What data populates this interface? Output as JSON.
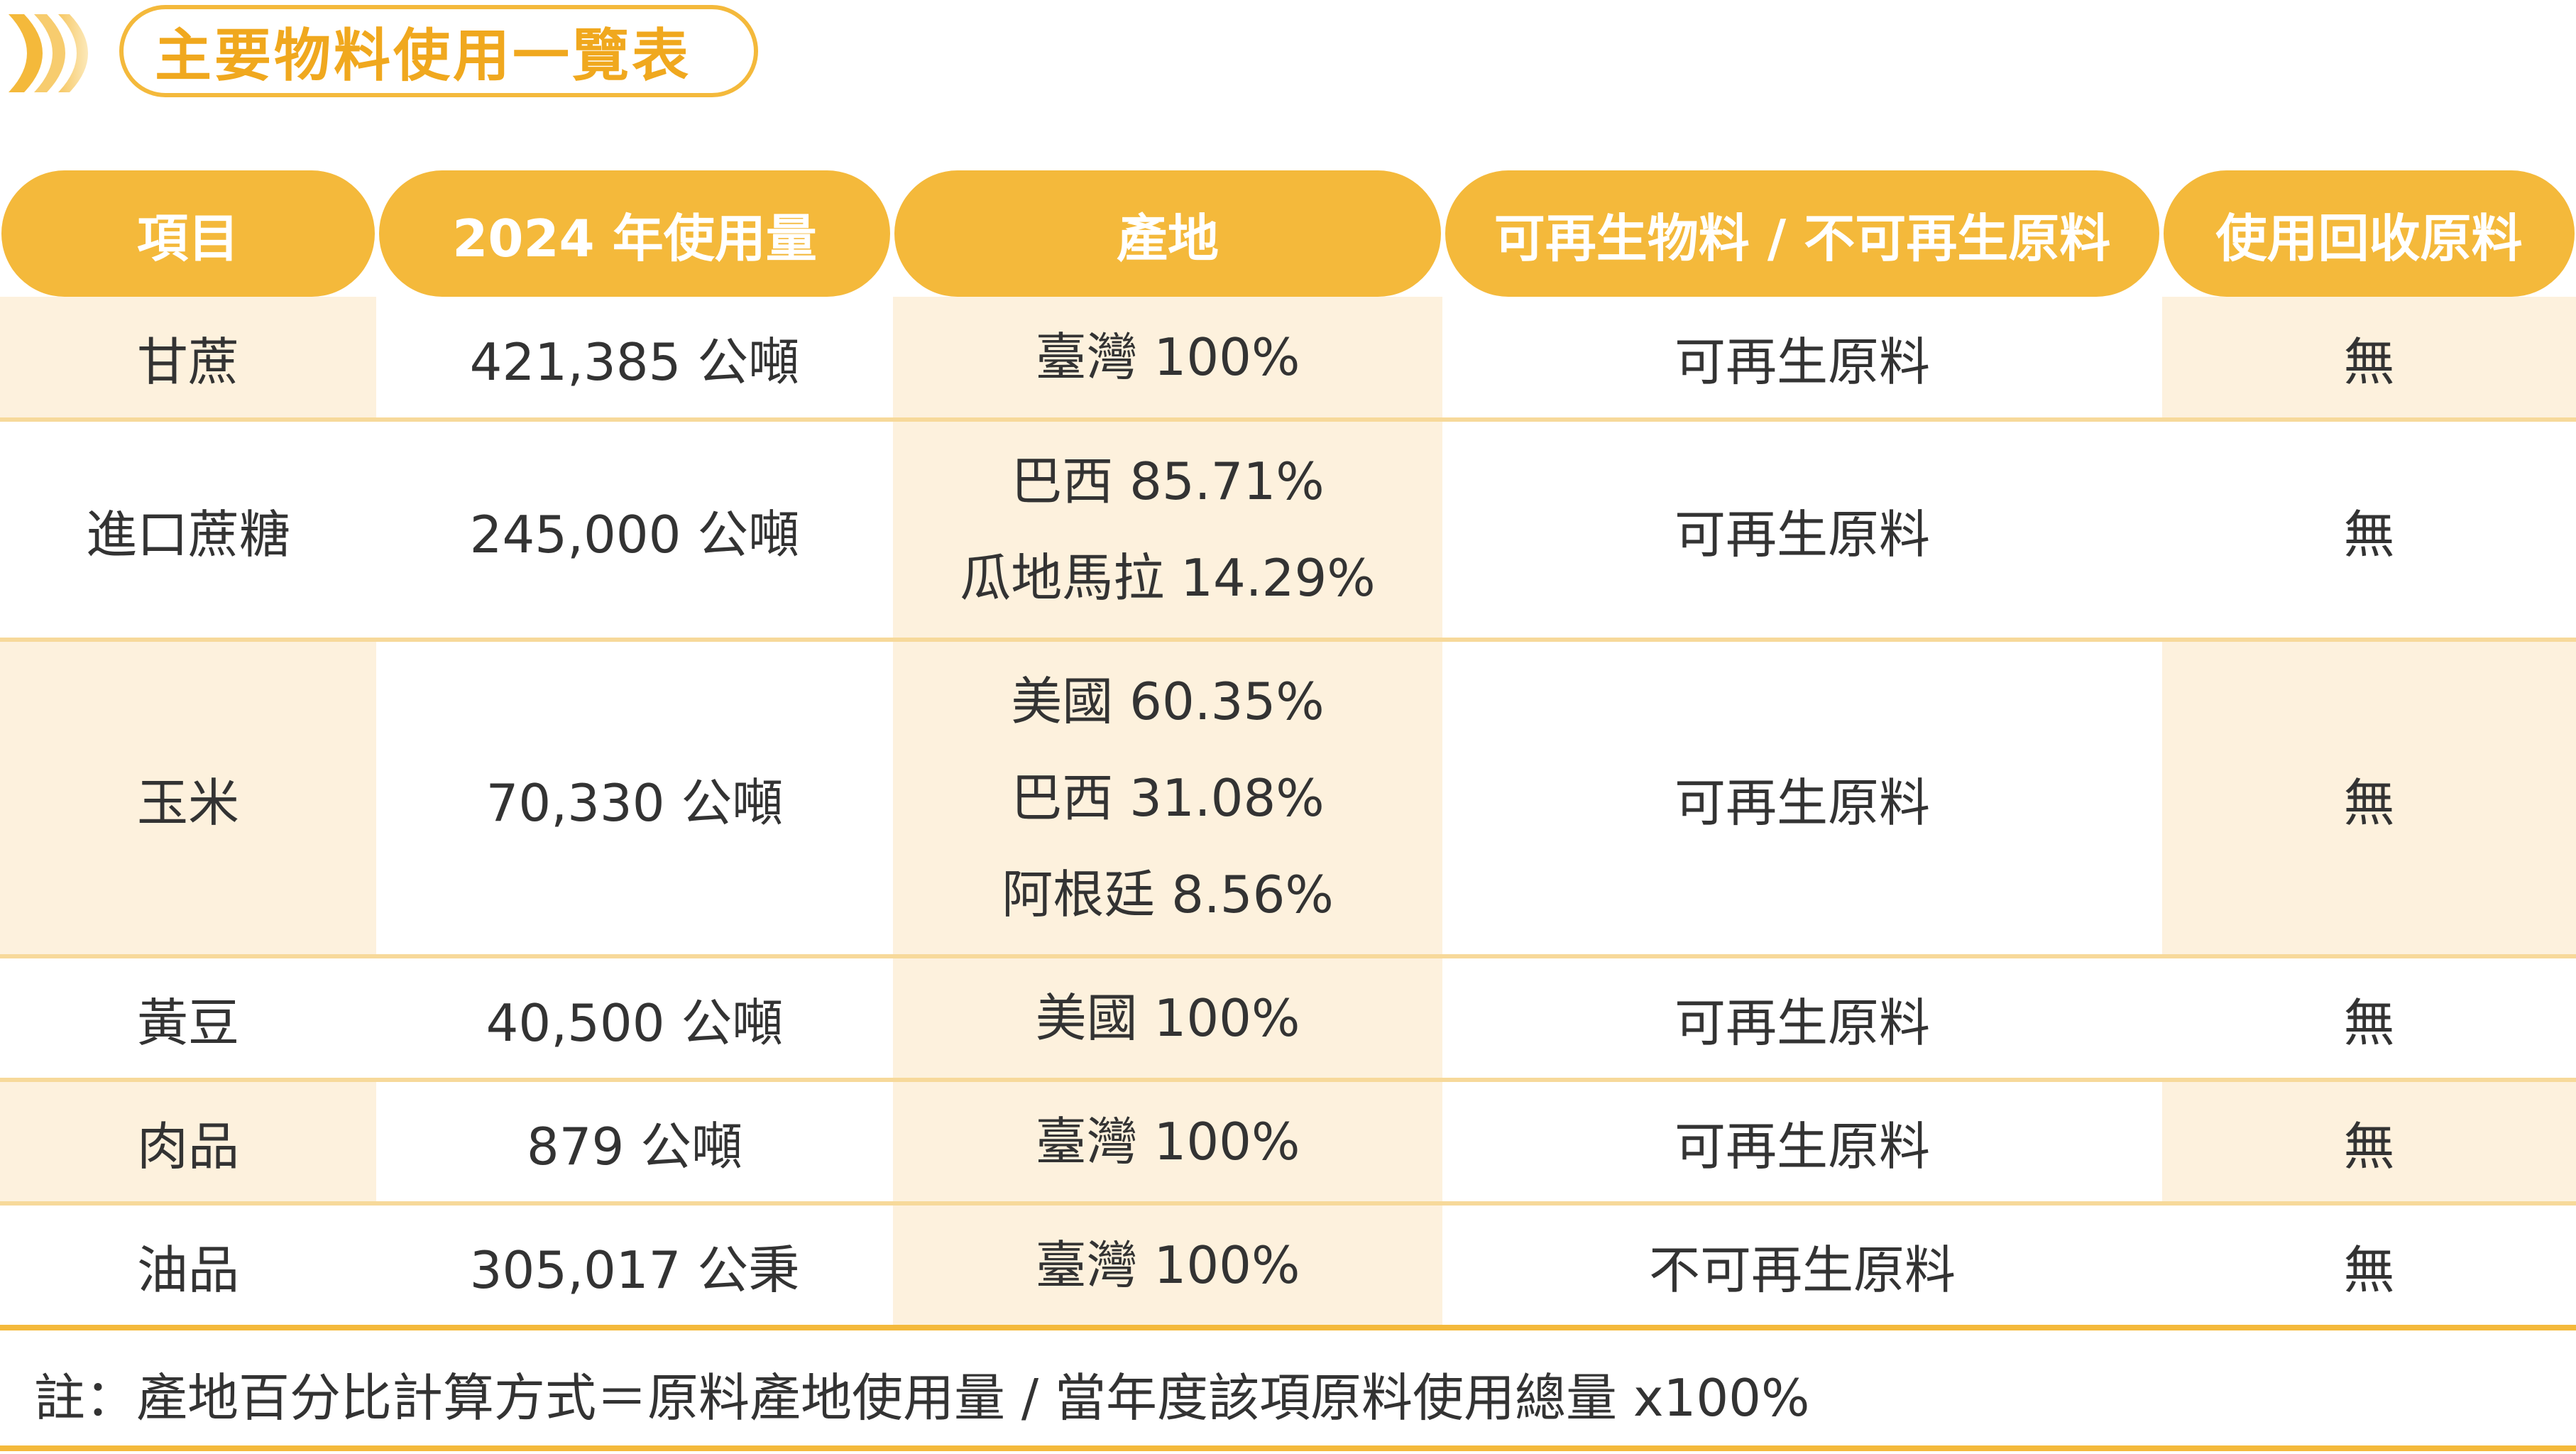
{
  "title": "主要物料使用一覽表",
  "colors": {
    "accent": "#f4b93b",
    "title_text": "#f0a81e",
    "shade": "#fdf1dd",
    "divider": "#f7d99a"
  },
  "icons": {
    "title": "chevron-stack-icon"
  },
  "table": {
    "headers": [
      "項目",
      "2024 年使用量",
      "產地",
      "可再生物料 / 不可再生原料",
      "使用回收原料"
    ],
    "rows": [
      {
        "item": "甘蔗",
        "usage": "421,385 公噸",
        "origin": [
          "臺灣 100%"
        ],
        "renewable": "可再生原料",
        "recycled": "無"
      },
      {
        "item": "進口蔗糖",
        "usage": "245,000 公噸",
        "origin": [
          "巴西 85.71%",
          "瓜地馬拉 14.29%"
        ],
        "renewable": "可再生原料",
        "recycled": "無"
      },
      {
        "item": "玉米",
        "usage": "70,330 公噸",
        "origin": [
          "美國 60.35%",
          "巴西 31.08%",
          "阿根廷 8.56%"
        ],
        "renewable": "可再生原料",
        "recycled": "無"
      },
      {
        "item": "黃豆",
        "usage": "40,500 公噸",
        "origin": [
          "美國 100%"
        ],
        "renewable": "可再生原料",
        "recycled": "無"
      },
      {
        "item": "肉品",
        "usage": "879 公噸",
        "origin": [
          "臺灣 100%"
        ],
        "renewable": "可再生原料",
        "recycled": "無"
      },
      {
        "item": "油品",
        "usage": "305,017 公秉",
        "origin": [
          "臺灣 100%"
        ],
        "renewable": "不可再生原料",
        "recycled": "無"
      }
    ]
  },
  "note": "註：產地百分比計算方式＝原料產地使用量 / 當年度該項原料使用總量 x100%"
}
